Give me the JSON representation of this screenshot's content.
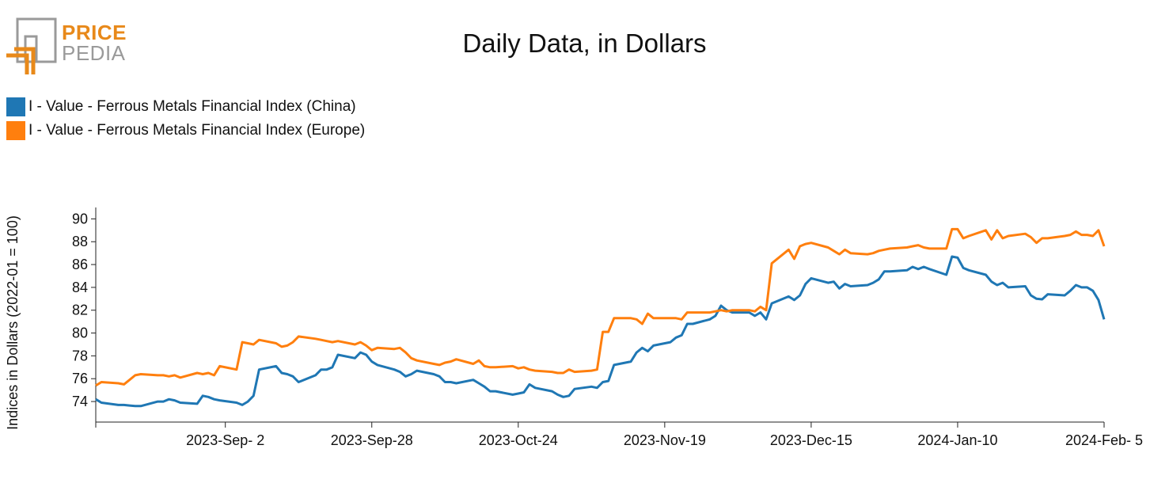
{
  "logo": {
    "price": "PRICE",
    "pedia": "PEDIA",
    "orange": "#e8891a",
    "grey": "#9a9a9a"
  },
  "chart_data": {
    "type": "line",
    "title": "Daily Data, in Dollars",
    "ylabel": "Indices in Dollars (2022-01 = 100)",
    "xlabel": "",
    "ylim": [
      72.2,
      91
    ],
    "yticks": [
      74,
      76,
      78,
      80,
      82,
      84,
      86,
      88,
      90
    ],
    "xlim": [
      "2023-08-10",
      "2024-02-05"
    ],
    "xticks": [
      {
        "date": "2023-09-02",
        "label": "2023-Sep- 2"
      },
      {
        "date": "2023-09-28",
        "label": "2023-Sep-28"
      },
      {
        "date": "2023-10-24",
        "label": "2023-Oct-24"
      },
      {
        "date": "2023-11-19",
        "label": "2023-Nov-19"
      },
      {
        "date": "2023-12-15",
        "label": "2023-Dec-15"
      },
      {
        "date": "2024-01-10",
        "label": "2024-Jan-10"
      },
      {
        "date": "2024-02-05",
        "label": "2024-Feb- 5"
      }
    ],
    "grid": false,
    "legend_position": "top-left",
    "series": [
      {
        "name": "I - Value - Ferrous Metals Financial Index (China)",
        "color": "#1f77b4",
        "points": [
          [
            "2023-08-10",
            74.2
          ],
          [
            "2023-08-11",
            73.9
          ],
          [
            "2023-08-14",
            73.7
          ],
          [
            "2023-08-15",
            73.7
          ],
          [
            "2023-08-16",
            73.65
          ],
          [
            "2023-08-17",
            73.6
          ],
          [
            "2023-08-18",
            73.6
          ],
          [
            "2023-08-21",
            74.0
          ],
          [
            "2023-08-22",
            74.0
          ],
          [
            "2023-08-23",
            74.2
          ],
          [
            "2023-08-24",
            74.1
          ],
          [
            "2023-08-25",
            73.9
          ],
          [
            "2023-08-28",
            73.8
          ],
          [
            "2023-08-29",
            74.5
          ],
          [
            "2023-08-30",
            74.4
          ],
          [
            "2023-08-31",
            74.2
          ],
          [
            "2023-09-01",
            74.1
          ],
          [
            "2023-09-04",
            73.9
          ],
          [
            "2023-09-05",
            73.7
          ],
          [
            "2023-09-06",
            74.0
          ],
          [
            "2023-09-07",
            74.5
          ],
          [
            "2023-09-08",
            76.8
          ],
          [
            "2023-09-11",
            77.1
          ],
          [
            "2023-09-12",
            76.5
          ],
          [
            "2023-09-13",
            76.4
          ],
          [
            "2023-09-14",
            76.2
          ],
          [
            "2023-09-15",
            75.7
          ],
          [
            "2023-09-18",
            76.3
          ],
          [
            "2023-09-19",
            76.8
          ],
          [
            "2023-09-20",
            76.8
          ],
          [
            "2023-09-21",
            77.0
          ],
          [
            "2023-09-22",
            78.1
          ],
          [
            "2023-09-25",
            77.8
          ],
          [
            "2023-09-26",
            78.3
          ],
          [
            "2023-09-27",
            78.1
          ],
          [
            "2023-09-28",
            77.5
          ],
          [
            "2023-09-29",
            77.2
          ],
          [
            "2023-10-02",
            76.8
          ],
          [
            "2023-10-03",
            76.6
          ],
          [
            "2023-10-04",
            76.2
          ],
          [
            "2023-10-05",
            76.4
          ],
          [
            "2023-10-06",
            76.7
          ],
          [
            "2023-10-09",
            76.4
          ],
          [
            "2023-10-10",
            76.2
          ],
          [
            "2023-10-11",
            75.7
          ],
          [
            "2023-10-12",
            75.7
          ],
          [
            "2023-10-13",
            75.6
          ],
          [
            "2023-10-16",
            75.9
          ],
          [
            "2023-10-17",
            75.6
          ],
          [
            "2023-10-18",
            75.3
          ],
          [
            "2023-10-19",
            74.9
          ],
          [
            "2023-10-20",
            74.9
          ],
          [
            "2023-10-23",
            74.6
          ],
          [
            "2023-10-24",
            74.7
          ],
          [
            "2023-10-25",
            74.8
          ],
          [
            "2023-10-26",
            75.5
          ],
          [
            "2023-10-27",
            75.2
          ],
          [
            "2023-10-30",
            74.9
          ],
          [
            "2023-10-31",
            74.6
          ],
          [
            "2023-11-01",
            74.4
          ],
          [
            "2023-11-02",
            74.5
          ],
          [
            "2023-11-03",
            75.1
          ],
          [
            "2023-11-06",
            75.3
          ],
          [
            "2023-11-07",
            75.2
          ],
          [
            "2023-11-08",
            75.7
          ],
          [
            "2023-11-09",
            75.8
          ],
          [
            "2023-11-10",
            77.2
          ],
          [
            "2023-11-13",
            77.5
          ],
          [
            "2023-11-14",
            78.3
          ],
          [
            "2023-11-15",
            78.7
          ],
          [
            "2023-11-16",
            78.4
          ],
          [
            "2023-11-17",
            78.9
          ],
          [
            "2023-11-20",
            79.2
          ],
          [
            "2023-11-21",
            79.6
          ],
          [
            "2023-11-22",
            79.8
          ],
          [
            "2023-11-23",
            80.8
          ],
          [
            "2023-11-24",
            80.8
          ],
          [
            "2023-11-27",
            81.2
          ],
          [
            "2023-11-28",
            81.5
          ],
          [
            "2023-11-29",
            82.4
          ],
          [
            "2023-11-30",
            82.0
          ],
          [
            "2023-12-01",
            81.8
          ],
          [
            "2023-12-04",
            81.8
          ],
          [
            "2023-12-05",
            81.5
          ],
          [
            "2023-12-06",
            81.8
          ],
          [
            "2023-12-07",
            81.2
          ],
          [
            "2023-12-08",
            82.6
          ],
          [
            "2023-12-11",
            83.2
          ],
          [
            "2023-12-12",
            82.9
          ],
          [
            "2023-12-13",
            83.3
          ],
          [
            "2023-12-14",
            84.3
          ],
          [
            "2023-12-15",
            84.8
          ],
          [
            "2023-12-18",
            84.4
          ],
          [
            "2023-12-19",
            84.5
          ],
          [
            "2023-12-20",
            83.9
          ],
          [
            "2023-12-21",
            84.3
          ],
          [
            "2023-12-22",
            84.1
          ],
          [
            "2023-12-25",
            84.2
          ],
          [
            "2023-12-26",
            84.4
          ],
          [
            "2023-12-27",
            84.7
          ],
          [
            "2023-12-28",
            85.4
          ],
          [
            "2023-12-29",
            85.4
          ],
          [
            "2024-01-01",
            85.5
          ],
          [
            "2024-01-02",
            85.8
          ],
          [
            "2024-01-03",
            85.6
          ],
          [
            "2024-01-04",
            85.8
          ],
          [
            "2024-01-05",
            85.6
          ],
          [
            "2024-01-08",
            85.1
          ],
          [
            "2024-01-09",
            86.7
          ],
          [
            "2024-01-10",
            86.6
          ],
          [
            "2024-01-11",
            85.7
          ],
          [
            "2024-01-12",
            85.5
          ],
          [
            "2024-01-15",
            85.1
          ],
          [
            "2024-01-16",
            84.5
          ],
          [
            "2024-01-17",
            84.2
          ],
          [
            "2024-01-18",
            84.4
          ],
          [
            "2024-01-19",
            84.0
          ],
          [
            "2024-01-22",
            84.1
          ],
          [
            "2024-01-23",
            83.3
          ],
          [
            "2024-01-24",
            83.0
          ],
          [
            "2024-01-25",
            82.95
          ],
          [
            "2024-01-26",
            83.4
          ],
          [
            "2024-01-29",
            83.3
          ],
          [
            "2024-01-30",
            83.7
          ],
          [
            "2024-01-31",
            84.2
          ],
          [
            "2024-02-01",
            84.0
          ],
          [
            "2024-02-02",
            84.0
          ],
          [
            "2024-02-03",
            83.7
          ],
          [
            "2024-02-04",
            82.9
          ],
          [
            "2024-02-05",
            81.2
          ]
        ]
      },
      {
        "name": "I - Value - Ferrous Metals Financial Index (Europe)",
        "color": "#ff7f0e",
        "points": [
          [
            "2023-08-10",
            75.4
          ],
          [
            "2023-08-11",
            75.7
          ],
          [
            "2023-08-14",
            75.6
          ],
          [
            "2023-08-15",
            75.5
          ],
          [
            "2023-08-16",
            75.9
          ],
          [
            "2023-08-17",
            76.3
          ],
          [
            "2023-08-18",
            76.4
          ],
          [
            "2023-08-21",
            76.3
          ],
          [
            "2023-08-22",
            76.3
          ],
          [
            "2023-08-23",
            76.2
          ],
          [
            "2023-08-24",
            76.3
          ],
          [
            "2023-08-25",
            76.1
          ],
          [
            "2023-08-28",
            76.5
          ],
          [
            "2023-08-29",
            76.4
          ],
          [
            "2023-08-30",
            76.5
          ],
          [
            "2023-08-31",
            76.3
          ],
          [
            "2023-09-01",
            77.1
          ],
          [
            "2023-09-04",
            76.8
          ],
          [
            "2023-09-05",
            79.2
          ],
          [
            "2023-09-06",
            79.1
          ],
          [
            "2023-09-07",
            79.0
          ],
          [
            "2023-09-08",
            79.4
          ],
          [
            "2023-09-11",
            79.1
          ],
          [
            "2023-09-12",
            78.8
          ],
          [
            "2023-09-13",
            78.9
          ],
          [
            "2023-09-14",
            79.2
          ],
          [
            "2023-09-15",
            79.7
          ],
          [
            "2023-09-18",
            79.5
          ],
          [
            "2023-09-19",
            79.4
          ],
          [
            "2023-09-20",
            79.3
          ],
          [
            "2023-09-21",
            79.2
          ],
          [
            "2023-09-22",
            79.3
          ],
          [
            "2023-09-25",
            79.0
          ],
          [
            "2023-09-26",
            79.2
          ],
          [
            "2023-09-27",
            78.9
          ],
          [
            "2023-09-28",
            78.5
          ],
          [
            "2023-09-29",
            78.7
          ],
          [
            "2023-10-02",
            78.6
          ],
          [
            "2023-10-03",
            78.7
          ],
          [
            "2023-10-04",
            78.3
          ],
          [
            "2023-10-05",
            77.8
          ],
          [
            "2023-10-06",
            77.6
          ],
          [
            "2023-10-09",
            77.3
          ],
          [
            "2023-10-10",
            77.2
          ],
          [
            "2023-10-11",
            77.4
          ],
          [
            "2023-10-12",
            77.5
          ],
          [
            "2023-10-13",
            77.7
          ],
          [
            "2023-10-16",
            77.3
          ],
          [
            "2023-10-17",
            77.6
          ],
          [
            "2023-10-18",
            77.1
          ],
          [
            "2023-10-19",
            77.0
          ],
          [
            "2023-10-20",
            77.0
          ],
          [
            "2023-10-23",
            77.1
          ],
          [
            "2023-10-24",
            76.9
          ],
          [
            "2023-10-25",
            77.0
          ],
          [
            "2023-10-26",
            76.8
          ],
          [
            "2023-10-27",
            76.7
          ],
          [
            "2023-10-30",
            76.6
          ],
          [
            "2023-10-31",
            76.5
          ],
          [
            "2023-11-01",
            76.5
          ],
          [
            "2023-11-02",
            76.8
          ],
          [
            "2023-11-03",
            76.6
          ],
          [
            "2023-11-06",
            76.7
          ],
          [
            "2023-11-07",
            76.8
          ],
          [
            "2023-11-08",
            80.1
          ],
          [
            "2023-11-09",
            80.1
          ],
          [
            "2023-11-10",
            81.3
          ],
          [
            "2023-11-13",
            81.3
          ],
          [
            "2023-11-14",
            81.2
          ],
          [
            "2023-11-15",
            80.8
          ],
          [
            "2023-11-16",
            81.7
          ],
          [
            "2023-11-17",
            81.3
          ],
          [
            "2023-11-20",
            81.3
          ],
          [
            "2023-11-21",
            81.3
          ],
          [
            "2023-11-22",
            81.2
          ],
          [
            "2023-11-23",
            81.8
          ],
          [
            "2023-11-24",
            81.8
          ],
          [
            "2023-11-27",
            81.8
          ],
          [
            "2023-11-28",
            81.9
          ],
          [
            "2023-11-29",
            82.0
          ],
          [
            "2023-11-30",
            81.9
          ],
          [
            "2023-12-01",
            82.0
          ],
          [
            "2023-12-04",
            82.0
          ],
          [
            "2023-12-05",
            81.9
          ],
          [
            "2023-12-06",
            82.3
          ],
          [
            "2023-12-07",
            82.0
          ],
          [
            "2023-12-08",
            86.1
          ],
          [
            "2023-12-11",
            87.3
          ],
          [
            "2023-12-12",
            86.5
          ],
          [
            "2023-12-13",
            87.6
          ],
          [
            "2023-12-14",
            87.8
          ],
          [
            "2023-12-15",
            87.9
          ],
          [
            "2023-12-18",
            87.5
          ],
          [
            "2023-12-19",
            87.2
          ],
          [
            "2023-12-20",
            86.9
          ],
          [
            "2023-12-21",
            87.3
          ],
          [
            "2023-12-22",
            87.0
          ],
          [
            "2023-12-25",
            86.9
          ],
          [
            "2023-12-26",
            87.0
          ],
          [
            "2023-12-27",
            87.2
          ],
          [
            "2023-12-28",
            87.3
          ],
          [
            "2023-12-29",
            87.4
          ],
          [
            "2024-01-01",
            87.5
          ],
          [
            "2024-01-02",
            87.6
          ],
          [
            "2024-01-03",
            87.7
          ],
          [
            "2024-01-04",
            87.5
          ],
          [
            "2024-01-05",
            87.4
          ],
          [
            "2024-01-08",
            87.4
          ],
          [
            "2024-01-09",
            89.1
          ],
          [
            "2024-01-10",
            89.1
          ],
          [
            "2024-01-11",
            88.3
          ],
          [
            "2024-01-12",
            88.5
          ],
          [
            "2024-01-15",
            89.0
          ],
          [
            "2024-01-16",
            88.2
          ],
          [
            "2024-01-17",
            89.0
          ],
          [
            "2024-01-18",
            88.3
          ],
          [
            "2024-01-19",
            88.5
          ],
          [
            "2024-01-22",
            88.7
          ],
          [
            "2024-01-23",
            88.4
          ],
          [
            "2024-01-24",
            87.9
          ],
          [
            "2024-01-25",
            88.3
          ],
          [
            "2024-01-26",
            88.3
          ],
          [
            "2024-01-29",
            88.5
          ],
          [
            "2024-01-30",
            88.6
          ],
          [
            "2024-01-31",
            88.9
          ],
          [
            "2024-02-01",
            88.6
          ],
          [
            "2024-02-02",
            88.6
          ],
          [
            "2024-02-03",
            88.5
          ],
          [
            "2024-02-04",
            89.0
          ],
          [
            "2024-02-05",
            87.6
          ]
        ]
      }
    ]
  }
}
